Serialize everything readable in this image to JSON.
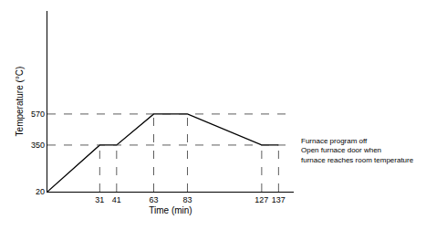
{
  "chart_data": {
    "type": "line",
    "x": [
      0,
      31,
      41,
      63,
      83,
      127,
      137
    ],
    "values": [
      20,
      350,
      350,
      570,
      570,
      350,
      350
    ],
    "color": "#000000",
    "line_style": "solid",
    "xlabel": "Time (min)",
    "ylabel": "Temperature (°C)",
    "xlim": [
      0,
      146
    ],
    "ylim": [
      20,
      1300
    ],
    "xticks": [
      31,
      41,
      63,
      83,
      127,
      137
    ],
    "yticks": [
      20,
      350,
      570
    ],
    "grid": false,
    "annotations": [
      "Furnace program off",
      "Open furnace door when",
      "furnace reaches room temperature"
    ]
  }
}
